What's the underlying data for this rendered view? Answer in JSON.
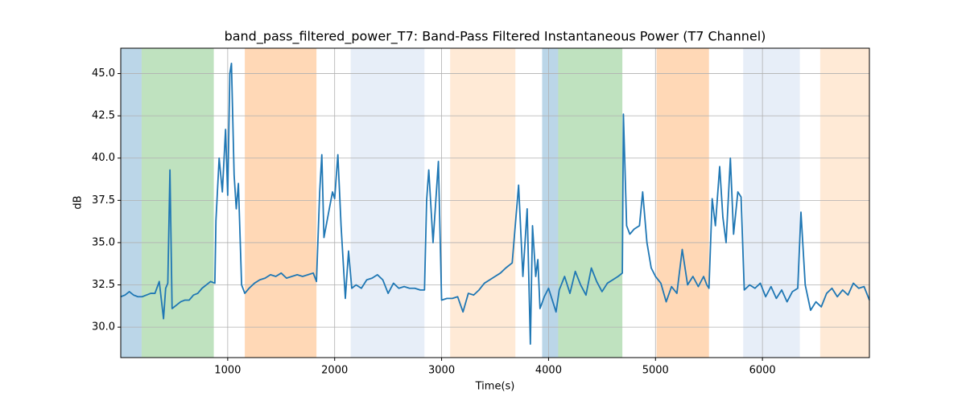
{
  "chart_data": {
    "type": "line",
    "title": "band_pass_filtered_power_T7: Band-Pass Filtered Instantaneous Power (T7 Channel)",
    "xlabel": "Time(s)",
    "ylabel": "dB",
    "x": [
      0,
      40,
      80,
      120,
      160,
      200,
      240,
      280,
      320,
      360,
      400,
      420,
      440,
      460,
      480,
      520,
      560,
      600,
      640,
      680,
      720,
      760,
      800,
      840,
      880,
      890,
      920,
      950,
      980,
      1000,
      1020,
      1035,
      1060,
      1080,
      1100,
      1130,
      1160,
      1200,
      1250,
      1300,
      1350,
      1400,
      1450,
      1500,
      1550,
      1600,
      1650,
      1700,
      1750,
      1800,
      1830,
      1860,
      1880,
      1900,
      1950,
      1980,
      2000,
      2030,
      2060,
      2100,
      2130,
      2160,
      2200,
      2250,
      2300,
      2350,
      2400,
      2450,
      2500,
      2550,
      2600,
      2650,
      2700,
      2750,
      2800,
      2840,
      2860,
      2880,
      2920,
      2970,
      3000,
      3050,
      3100,
      3150,
      3200,
      3250,
      3300,
      3350,
      3400,
      3450,
      3500,
      3550,
      3600,
      3660,
      3720,
      3760,
      3800,
      3830,
      3850,
      3880,
      3900,
      3920,
      3960,
      4000,
      4040,
      4070,
      4100,
      4150,
      4200,
      4250,
      4300,
      4350,
      4400,
      4450,
      4500,
      4550,
      4600,
      4650,
      4690,
      4700,
      4730,
      4760,
      4800,
      4850,
      4880,
      4920,
      4960,
      5000,
      5050,
      5100,
      5150,
      5200,
      5250,
      5300,
      5350,
      5400,
      5450,
      5480,
      5500,
      5530,
      5560,
      5600,
      5630,
      5660,
      5700,
      5730,
      5770,
      5800,
      5830,
      5880,
      5930,
      5980,
      6030,
      6080,
      6130,
      6180,
      6230,
      6280,
      6330,
      6360,
      6400,
      6450,
      6500,
      6550,
      6600,
      6650,
      6700,
      6750,
      6800,
      6850,
      6900,
      6950,
      7000
    ],
    "series": [
      {
        "name": "band_pass_filtered_power_T7",
        "color": "#1f77b4",
        "values": [
          31.8,
          31.9,
          32.1,
          31.9,
          31.8,
          31.8,
          31.9,
          32.0,
          32.0,
          32.7,
          30.5,
          32.3,
          32.6,
          39.3,
          31.1,
          31.3,
          31.5,
          31.6,
          31.6,
          31.9,
          32.0,
          32.3,
          32.5,
          32.7,
          32.6,
          36.3,
          40.0,
          38.0,
          41.7,
          37.8,
          45.0,
          45.6,
          39.0,
          37.0,
          38.5,
          32.5,
          32.0,
          32.3,
          32.6,
          32.8,
          32.9,
          33.1,
          33.0,
          33.2,
          32.9,
          33.0,
          33.1,
          33.0,
          33.1,
          33.2,
          32.7,
          38.0,
          40.2,
          35.3,
          37.0,
          38.0,
          37.6,
          40.2,
          36.0,
          31.7,
          34.5,
          32.3,
          32.5,
          32.3,
          32.8,
          32.9,
          33.1,
          32.8,
          32.0,
          32.6,
          32.3,
          32.4,
          32.3,
          32.3,
          32.2,
          32.2,
          37.5,
          39.3,
          35.0,
          39.8,
          31.6,
          31.7,
          31.7,
          31.8,
          30.9,
          32.0,
          31.9,
          32.2,
          32.6,
          32.8,
          33.0,
          33.2,
          33.5,
          33.8,
          38.4,
          33.0,
          37.0,
          29.0,
          36.0,
          33.0,
          34.0,
          31.1,
          31.8,
          32.3,
          31.5,
          30.9,
          32.2,
          33.0,
          32.0,
          33.3,
          32.5,
          31.9,
          33.5,
          32.7,
          32.1,
          32.6,
          32.8,
          33.0,
          33.2,
          42.6,
          36.0,
          35.5,
          35.8,
          36.0,
          38.0,
          35.0,
          33.5,
          33.0,
          32.6,
          31.5,
          32.4,
          32.0,
          34.6,
          32.5,
          33.0,
          32.4,
          33.0,
          32.5,
          32.3,
          37.6,
          36.0,
          39.5,
          36.5,
          35.0,
          40.0,
          35.5,
          38.0,
          37.7,
          32.2,
          32.5,
          32.3,
          32.6,
          31.8,
          32.4,
          31.7,
          32.2,
          31.5,
          32.1,
          32.3,
          36.8,
          32.5,
          31.0,
          31.5,
          31.2,
          32.0,
          32.3,
          31.8,
          32.2,
          31.9,
          32.6,
          32.3,
          32.4,
          31.6
        ]
      }
    ],
    "spans": [
      {
        "x": [
          0,
          195
        ],
        "color": "#1f77b4",
        "alpha": 0.3
      },
      {
        "x": [
          195,
          870
        ],
        "color": "#2ca02c",
        "alpha": 0.3
      },
      {
        "x": [
          1160,
          1830
        ],
        "color": "#ff7f0e",
        "alpha": 0.3
      },
      {
        "x": [
          2150,
          2840
        ],
        "color": "#aec7e8",
        "alpha": 0.3
      },
      {
        "x": [
          3080,
          3690
        ],
        "color": "#ffbb78",
        "alpha": 0.3
      },
      {
        "x": [
          3940,
          4090
        ],
        "color": "#1f77b4",
        "alpha": 0.3
      },
      {
        "x": [
          4090,
          4690
        ],
        "color": "#2ca02c",
        "alpha": 0.3
      },
      {
        "x": [
          5010,
          5500
        ],
        "color": "#ff7f0e",
        "alpha": 0.3
      },
      {
        "x": [
          5820,
          6350
        ],
        "color": "#aec7e8",
        "alpha": 0.3
      },
      {
        "x": [
          6540,
          7000
        ],
        "color": "#ffbb78",
        "alpha": 0.3
      }
    ],
    "xlim": [
      0,
      7000
    ],
    "ylim": [
      28.2,
      46.5
    ],
    "xticks": [
      1000,
      2000,
      3000,
      4000,
      5000,
      6000
    ],
    "yticks": [
      {
        "value": 30,
        "label": "30.0"
      },
      32.5,
      {
        "value": 35,
        "label": "35.0"
      },
      37.5,
      {
        "value": 40,
        "label": "40.0"
      },
      42.5,
      {
        "value": 45,
        "label": "45.0"
      }
    ],
    "grid": true
  }
}
